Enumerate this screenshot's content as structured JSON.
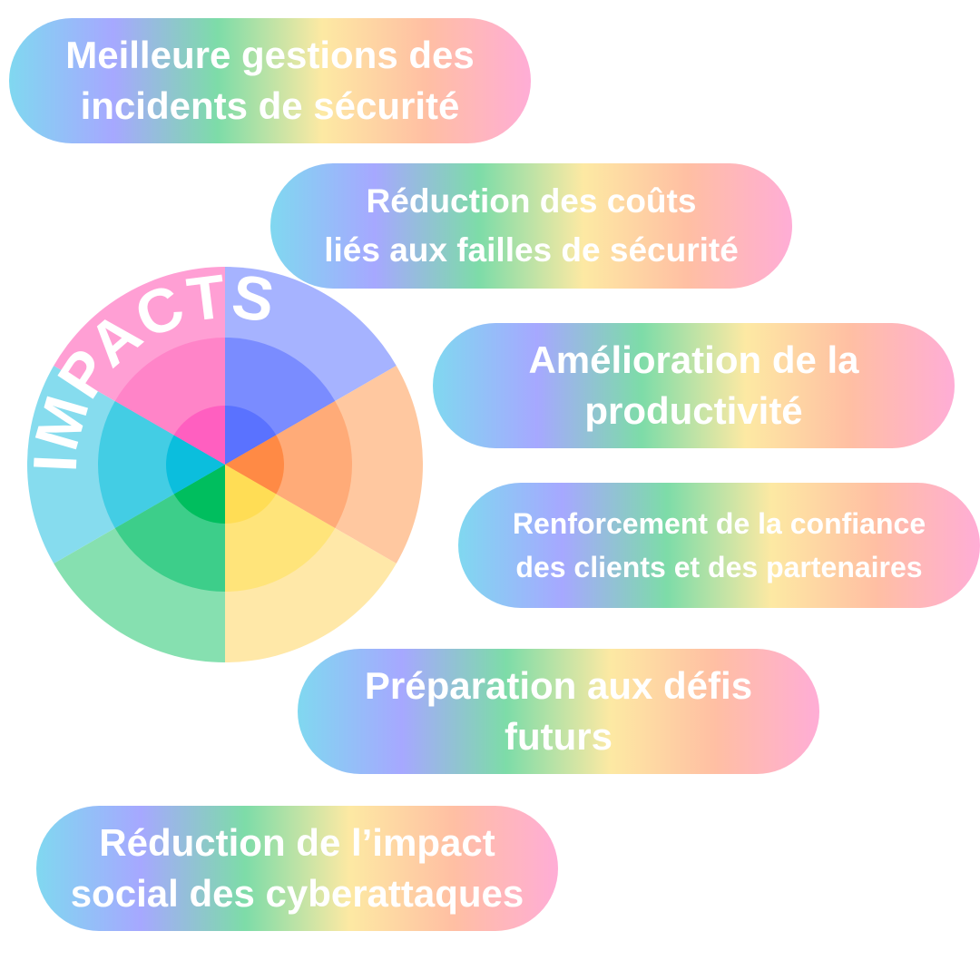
{
  "wheel": {
    "title": "IMPACTS",
    "colors": {
      "outer": [
        "#a6b3ff",
        "#ffc8a0",
        "#ffe8a8",
        "#86e0b0",
        "#86dcee",
        "#ff9fd4"
      ],
      "middle": [
        "#7a8cff",
        "#ffab78",
        "#ffe47a",
        "#3dce8a",
        "#43cde4",
        "#ff84c8"
      ],
      "inner": [
        "#5a72ff",
        "#ff8a45",
        "#ffdd55",
        "#00be5e",
        "#0bbedd",
        "#ff5fc0"
      ]
    }
  },
  "items": [
    {
      "lines": [
        "Meilleure gestions des",
        "incidents de sécurité"
      ]
    },
    {
      "lines": [
        "Réduction des coûts",
        "liés aux failles de sécurité"
      ]
    },
    {
      "lines": [
        "Amélioration de la",
        "productivité"
      ]
    },
    {
      "lines": [
        "Renforcement de la confiance",
        "des clients et des partenaires"
      ]
    },
    {
      "lines": [
        "Préparation aux défis",
        "futurs"
      ]
    },
    {
      "lines": [
        "Réduction de l’impact",
        "social des cyberattaques"
      ]
    }
  ]
}
